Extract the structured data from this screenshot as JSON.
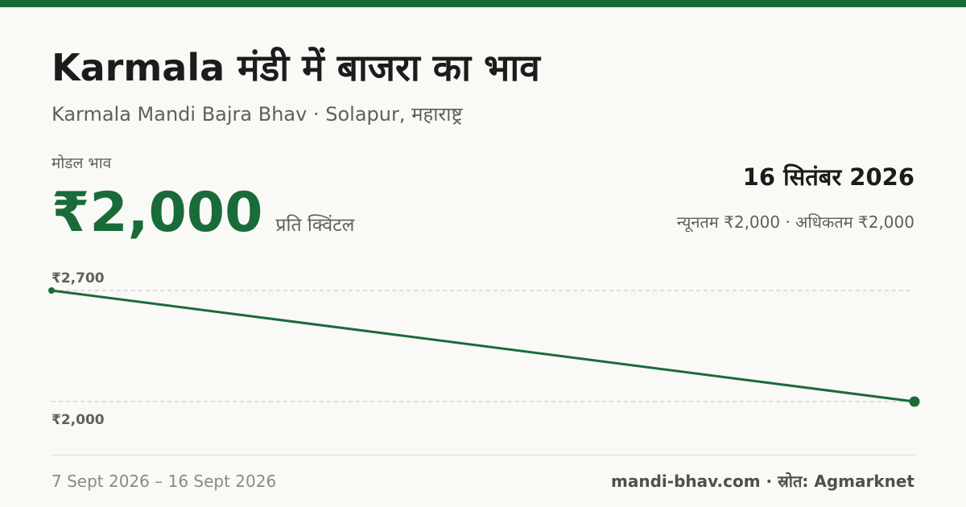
{
  "header": {
    "title": "Karmala मंडी में बाजरा का भाव",
    "subtitle": "Karmala Mandi Bajra Bhav · Solapur, महाराष्ट्र"
  },
  "price": {
    "label": "मोडल भाव",
    "value": "₹2,000",
    "unit": "प्रति क्विंटल"
  },
  "summary": {
    "date": "16 सितंबर 2026",
    "range": "न्यूनतम ₹2,000 · अधिकतम ₹2,000"
  },
  "footer": {
    "period": "7 Sept 2026 – 16 Sept 2026",
    "source": "mandi-bhav.com · स्रोत: Agmarknet"
  },
  "colors": {
    "accent": "#1a6b3a",
    "top_bar": "#1a6b3a",
    "gridline": "#c4c4c4",
    "muted_text": "#5f5f5f",
    "background": "#f9faf6"
  },
  "chart_data": {
    "type": "line",
    "x": [
      "7 Sept 2026",
      "16 Sept 2026"
    ],
    "series": [
      {
        "values": [
          2700,
          2000
        ]
      }
    ],
    "ylim": [
      2000,
      2700
    ],
    "y_tick_labels": [
      "₹2,700",
      "₹2,000"
    ],
    "grid": true
  }
}
